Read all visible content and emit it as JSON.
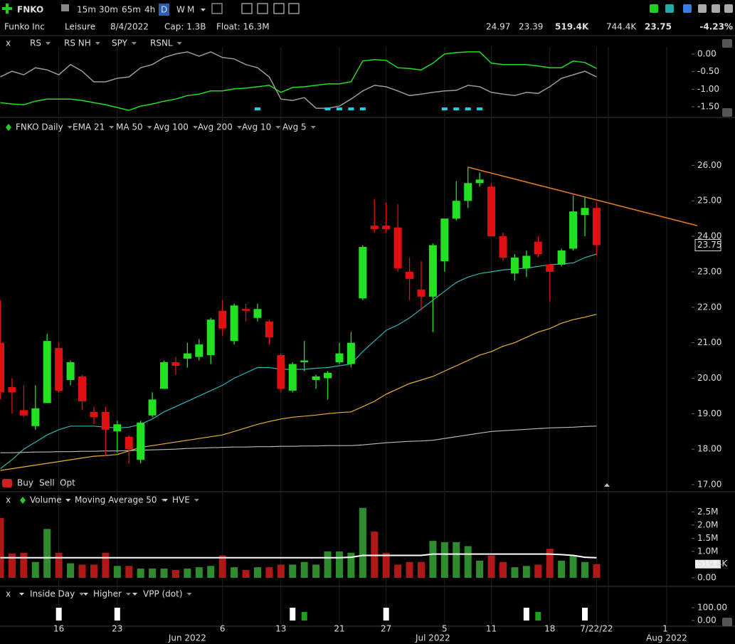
{
  "header": {
    "symbol": "FNKO",
    "timeframes": [
      "15m",
      "30m",
      "65m",
      "4h",
      "D",
      "W",
      "M"
    ],
    "name": "Funko Inc",
    "industry": "Leisure",
    "date": "8/4/2022",
    "cap": "Cap: 1.3B",
    "float": "Float: 16.3M",
    "quotes": [
      "24.97",
      "23.39",
      "519.4K",
      "744.4K"
    ],
    "last": "23.75",
    "change": "-4.23%"
  },
  "ui": {
    "close": "x",
    "trade": [
      "Buy",
      "Sell",
      "Opt"
    ],
    "volume_extra": "HVE",
    "vpp": "VPP (dot)"
  },
  "chart_data": [
    {
      "type": "line",
      "series": [
        {
          "name": "RS",
          "color": "#22dd22",
          "values": [
            -1.38,
            -1.42,
            -1.44,
            -1.34,
            -1.28,
            -1.28,
            -1.28,
            -1.32,
            -1.38,
            -1.44,
            -1.52,
            -1.6,
            -1.48,
            -1.42,
            -1.34,
            -1.28,
            -1.18,
            -1.14,
            -1.05,
            -1.05,
            -0.99,
            -0.97,
            -0.93,
            -0.89,
            -1.09,
            -0.95,
            -0.93,
            -0.89,
            -0.85,
            -0.85,
            -0.79,
            -0.2,
            -0.16,
            -0.18,
            -0.39,
            -0.41,
            -0.45,
            -0.26,
            0,
            0.04,
            0.06,
            0.06,
            -0.26,
            -0.3,
            -0.3,
            -0.3,
            -0.34,
            -0.39,
            -0.39,
            -0.2,
            -0.24,
            -0.41
          ]
        },
        {
          "name": "SPY",
          "color": "#9a9a9a",
          "values": [
            -0.65,
            -0.49,
            -0.59,
            -0.39,
            -0.45,
            -0.59,
            -0.3,
            -0.49,
            -0.79,
            -0.79,
            -0.69,
            -0.65,
            -0.39,
            -0.3,
            -0.1,
            0,
            0.06,
            -0.06,
            0.06,
            -0.1,
            -0.14,
            -0.3,
            -0.39,
            -0.65,
            -1.28,
            -1.32,
            -1.24,
            -1.54,
            -1.54,
            -1.48,
            -1.28,
            -1.05,
            -0.89,
            -0.93,
            -1.05,
            -1.18,
            -1.14,
            -1.09,
            -1.05,
            -1.03,
            -0.89,
            -0.93,
            -1.09,
            -1.14,
            -1.18,
            -1.09,
            -1.12,
            -0.93,
            -0.69,
            -0.59,
            -0.49,
            -0.65
          ]
        }
      ],
      "flags": {
        "name": "RS NH",
        "color": "#22ccdd",
        "values": [
          false,
          false,
          false,
          false,
          false,
          false,
          false,
          false,
          false,
          false,
          false,
          false,
          false,
          false,
          false,
          false,
          false,
          false,
          false,
          false,
          false,
          false,
          true,
          false,
          false,
          false,
          false,
          false,
          true,
          true,
          true,
          true,
          false,
          false,
          false,
          false,
          false,
          false,
          true,
          true,
          true,
          true,
          false,
          false,
          false,
          false,
          false,
          false,
          false,
          false,
          false,
          false
        ]
      },
      "extra_legend": [
        {
          "name": "RSNL",
          "color": "#dd3333"
        }
      ],
      "ylim": [
        -1.7,
        0.2
      ],
      "yticks": [
        {
          "value": 0,
          "label": "0.00"
        },
        {
          "value": -0.5,
          "label": "-0.50"
        },
        {
          "value": -1,
          "label": "-1.00"
        },
        {
          "value": -1.5,
          "label": "-1.50"
        }
      ]
    },
    {
      "type": "candlestick",
      "name": "FNKO Daily",
      "categories": [
        null,
        null,
        null,
        null,
        null,
        "16",
        null,
        null,
        null,
        null,
        "23",
        null,
        null,
        null,
        null,
        null,
        "Jun 2022",
        null,
        null,
        "6",
        null,
        null,
        null,
        null,
        "13",
        null,
        null,
        null,
        null,
        "21",
        null,
        null,
        null,
        "27",
        null,
        null,
        null,
        "Jul 2022",
        "5",
        null,
        null,
        null,
        "11",
        null,
        null,
        null,
        null,
        "18",
        null,
        null,
        null,
        "7/22/22"
      ],
      "open": [
        21.0,
        19.75,
        19.1,
        18.65,
        19.3,
        20.85,
        19.95,
        20.05,
        19.05,
        19.05,
        18.5,
        18.35,
        17.7,
        18.95,
        19.7,
        20.45,
        20.55,
        20.6,
        20.65,
        21.9,
        21.05,
        21.95,
        21.7,
        21.6,
        20.65,
        19.65,
        20.45,
        19.95,
        20.0,
        20.45,
        20.4,
        22.25,
        24.3,
        24.3,
        24.25,
        23.0,
        22.5,
        22.3,
        23.3,
        24.5,
        25.0,
        25.5,
        25.4,
        24.0,
        22.95,
        23.1,
        23.85,
        23.2,
        23.2,
        23.65,
        24.6,
        24.8
      ],
      "high": [
        22.2,
        20.0,
        19.8,
        19.8,
        21.25,
        21.0,
        20.5,
        20.1,
        19.2,
        19.2,
        18.8,
        18.4,
        18.8,
        19.6,
        20.5,
        20.6,
        21.0,
        21.1,
        21.7,
        22.2,
        22.1,
        22.1,
        22.1,
        21.65,
        20.7,
        20.45,
        21.05,
        20.1,
        20.2,
        21.0,
        21.3,
        23.75,
        25.05,
        24.95,
        24.9,
        23.4,
        23.3,
        23.8,
        24.5,
        25.55,
        25.95,
        25.8,
        25.5,
        24.1,
        23.5,
        23.6,
        24.0,
        23.2,
        23.65,
        25.15,
        25.1,
        24.95
      ],
      "low": [
        19.4,
        19.0,
        18.9,
        18.55,
        19.3,
        19.6,
        19.8,
        19.1,
        18.7,
        17.8,
        17.9,
        17.6,
        17.6,
        18.9,
        19.7,
        20.1,
        20.3,
        20.5,
        20.4,
        21.2,
        20.95,
        21.6,
        21.6,
        20.95,
        19.6,
        19.6,
        20.2,
        19.7,
        19.4,
        20.4,
        20.3,
        22.2,
        24.1,
        24.1,
        23.0,
        22.2,
        21.9,
        21.3,
        23.0,
        24.45,
        24.8,
        25.4,
        24.0,
        23.3,
        22.75,
        22.85,
        23.4,
        22.15,
        23.15,
        23.6,
        24.0,
        23.45
      ],
      "close": [
        19.6,
        19.6,
        18.95,
        19.15,
        21.05,
        19.65,
        20.45,
        19.35,
        18.9,
        18.55,
        18.7,
        18.0,
        18.75,
        19.4,
        20.45,
        20.35,
        20.7,
        20.95,
        21.65,
        21.4,
        22.05,
        21.9,
        21.95,
        21.15,
        19.7,
        20.4,
        20.5,
        20.05,
        20.15,
        20.7,
        21.0,
        23.7,
        24.2,
        24.2,
        23.1,
        22.8,
        22.3,
        23.75,
        24.5,
        25.0,
        25.5,
        25.6,
        24.0,
        23.4,
        23.4,
        23.45,
        23.5,
        23.0,
        23.6,
        24.7,
        24.8,
        23.75
      ],
      "up_color": "#22e022",
      "down_color": "#e01010",
      "series": [
        {
          "name": "EMA 21",
          "color": "#2fb5b5",
          "values": [
            17.45,
            17.7,
            18.0,
            18.2,
            18.4,
            18.55,
            18.65,
            18.65,
            18.65,
            18.62,
            18.6,
            18.62,
            18.7,
            18.85,
            19.05,
            19.2,
            19.35,
            19.5,
            19.65,
            19.8,
            20.0,
            20.15,
            20.3,
            20.3,
            20.25,
            20.25,
            20.25,
            20.28,
            20.3,
            20.35,
            20.4,
            20.75,
            21.05,
            21.35,
            21.5,
            21.7,
            21.95,
            22.2,
            22.45,
            22.7,
            22.85,
            22.95,
            23.0,
            23.05,
            23.08,
            23.1,
            23.15,
            23.2,
            23.22,
            23.25,
            23.4,
            23.5
          ]
        },
        {
          "name": "MA 50",
          "color": "#e8b030",
          "values": [
            17.4,
            17.45,
            17.5,
            17.55,
            17.6,
            17.65,
            17.7,
            17.75,
            17.8,
            17.82,
            17.85,
            17.95,
            18.05,
            18.1,
            18.15,
            18.2,
            18.25,
            18.3,
            18.35,
            18.4,
            18.5,
            18.6,
            18.7,
            18.78,
            18.85,
            18.9,
            18.93,
            18.96,
            19.0,
            19.03,
            19.05,
            19.2,
            19.35,
            19.55,
            19.7,
            19.85,
            19.95,
            20.05,
            20.2,
            20.35,
            20.5,
            20.65,
            20.75,
            20.9,
            21.0,
            21.15,
            21.3,
            21.4,
            21.55,
            21.65,
            21.72,
            21.8
          ]
        },
        {
          "name": "Avg 200",
          "color": "#bbbbbb",
          "values": [
            17.9,
            17.9,
            17.91,
            17.92,
            17.92,
            17.93,
            17.93,
            17.94,
            17.94,
            17.95,
            17.95,
            17.96,
            17.97,
            17.98,
            17.99,
            18.0,
            18.02,
            18.03,
            18.04,
            18.05,
            18.06,
            18.06,
            18.07,
            18.07,
            18.08,
            18.08,
            18.09,
            18.09,
            18.1,
            18.1,
            18.1,
            18.12,
            18.15,
            18.18,
            18.2,
            18.22,
            18.23,
            18.25,
            18.3,
            18.35,
            18.4,
            18.45,
            18.5,
            18.52,
            18.54,
            18.56,
            18.58,
            18.6,
            18.61,
            18.62,
            18.64,
            18.65
          ]
        }
      ],
      "extra_legend": [
        {
          "name": "Avg 100",
          "color": "#e87a2a"
        },
        {
          "name": "Avg 10",
          "color": "#e090f0"
        },
        {
          "name": "Avg 5",
          "color": "#2a8f8f"
        }
      ],
      "trendline": {
        "color": "#e07a1a",
        "values": [
          25.95,
          24.3
        ]
      },
      "ylim": [
        16.8,
        26.85
      ],
      "yticks": [
        {
          "value": 26,
          "label": "26.00"
        },
        {
          "value": 25,
          "label": "25.00"
        },
        {
          "value": 24,
          "label": "24.00"
        },
        {
          "value": 23,
          "label": "23.00"
        },
        {
          "value": 22,
          "label": "22.00"
        },
        {
          "value": 21,
          "label": "21.00"
        },
        {
          "value": 20,
          "label": "20.00"
        },
        {
          "value": 19,
          "label": "19.00"
        },
        {
          "value": 18,
          "label": "18.00"
        },
        {
          "value": 17,
          "label": "17.00"
        }
      ],
      "last_label": {
        "value": 23.75,
        "label": "23.75"
      },
      "extra_xlabels": [
        "1",
        "Aug 2022"
      ],
      "grid": false
    },
    {
      "type": "bar",
      "name": "Volume",
      "values": [
        2.27,
        0.92,
        0.95,
        0.6,
        1.85,
        0.95,
        0.55,
        0.5,
        0.5,
        0.95,
        0.45,
        0.45,
        0.35,
        0.35,
        0.35,
        0.3,
        0.35,
        0.4,
        0.45,
        0.85,
        0.4,
        0.3,
        0.4,
        0.4,
        0.5,
        0.5,
        0.6,
        0.5,
        1.0,
        1.0,
        0.95,
        2.65,
        1.75,
        0.95,
        0.5,
        0.6,
        0.6,
        1.4,
        1.35,
        1.35,
        1.2,
        0.65,
        0.85,
        0.6,
        0.4,
        0.45,
        0.5,
        1.1,
        0.65,
        0.85,
        0.6,
        0.5194
      ],
      "up_color": "#2e8b2e",
      "down_color": "#b01818",
      "name_color": "#2ecc2e",
      "series": [
        {
          "name": "Moving Average 50",
          "color": "#ffffff",
          "values": [
            0.76,
            0.76,
            0.76,
            0.76,
            0.76,
            0.76,
            0.76,
            0.76,
            0.76,
            0.76,
            0.76,
            0.76,
            0.76,
            0.76,
            0.76,
            0.76,
            0.76,
            0.76,
            0.76,
            0.76,
            0.76,
            0.76,
            0.76,
            0.76,
            0.76,
            0.76,
            0.76,
            0.76,
            0.76,
            0.76,
            0.78,
            0.85,
            0.85,
            0.85,
            0.85,
            0.85,
            0.85,
            0.9,
            0.9,
            0.9,
            0.9,
            0.9,
            0.9,
            0.9,
            0.9,
            0.9,
            0.9,
            0.9,
            0.88,
            0.85,
            0.78,
            0.76
          ]
        }
      ],
      "ylim": [
        0,
        2.75
      ],
      "yticks": [
        {
          "value": 2.5,
          "label": "2.5M"
        },
        {
          "value": 2,
          "label": "2.0M"
        },
        {
          "value": 1.5,
          "label": "1.5M"
        },
        {
          "value": 1,
          "label": "1.0M"
        },
        {
          "value": 0,
          "label": "0.00"
        }
      ],
      "last_label": {
        "value": 0.5194,
        "label": "519.4K"
      }
    },
    {
      "type": "marker",
      "series": [
        {
          "name": "Inside Day",
          "color": "#ffffff",
          "values": [
            false,
            false,
            false,
            false,
            false,
            true,
            false,
            false,
            false,
            false,
            true,
            false,
            false,
            false,
            false,
            false,
            false,
            false,
            false,
            false,
            false,
            false,
            false,
            false,
            false,
            true,
            false,
            false,
            false,
            false,
            false,
            false,
            false,
            true,
            false,
            false,
            false,
            false,
            false,
            false,
            false,
            false,
            false,
            false,
            false,
            true,
            false,
            false,
            false,
            false,
            true,
            false
          ]
        },
        {
          "name": "Higher",
          "color": "#1f9f1f",
          "values": [
            false,
            false,
            false,
            false,
            false,
            false,
            false,
            false,
            false,
            false,
            false,
            false,
            false,
            false,
            false,
            false,
            false,
            false,
            false,
            false,
            false,
            false,
            false,
            false,
            false,
            false,
            true,
            false,
            false,
            false,
            false,
            false,
            false,
            false,
            false,
            false,
            false,
            false,
            false,
            false,
            false,
            false,
            false,
            false,
            false,
            false,
            true,
            false,
            false,
            false,
            false,
            false
          ]
        }
      ],
      "ylim": [
        0,
        100
      ],
      "yticks": [
        {
          "value": 100,
          "label": "100.00"
        },
        {
          "value": 0,
          "label": "0.00"
        }
      ]
    }
  ]
}
